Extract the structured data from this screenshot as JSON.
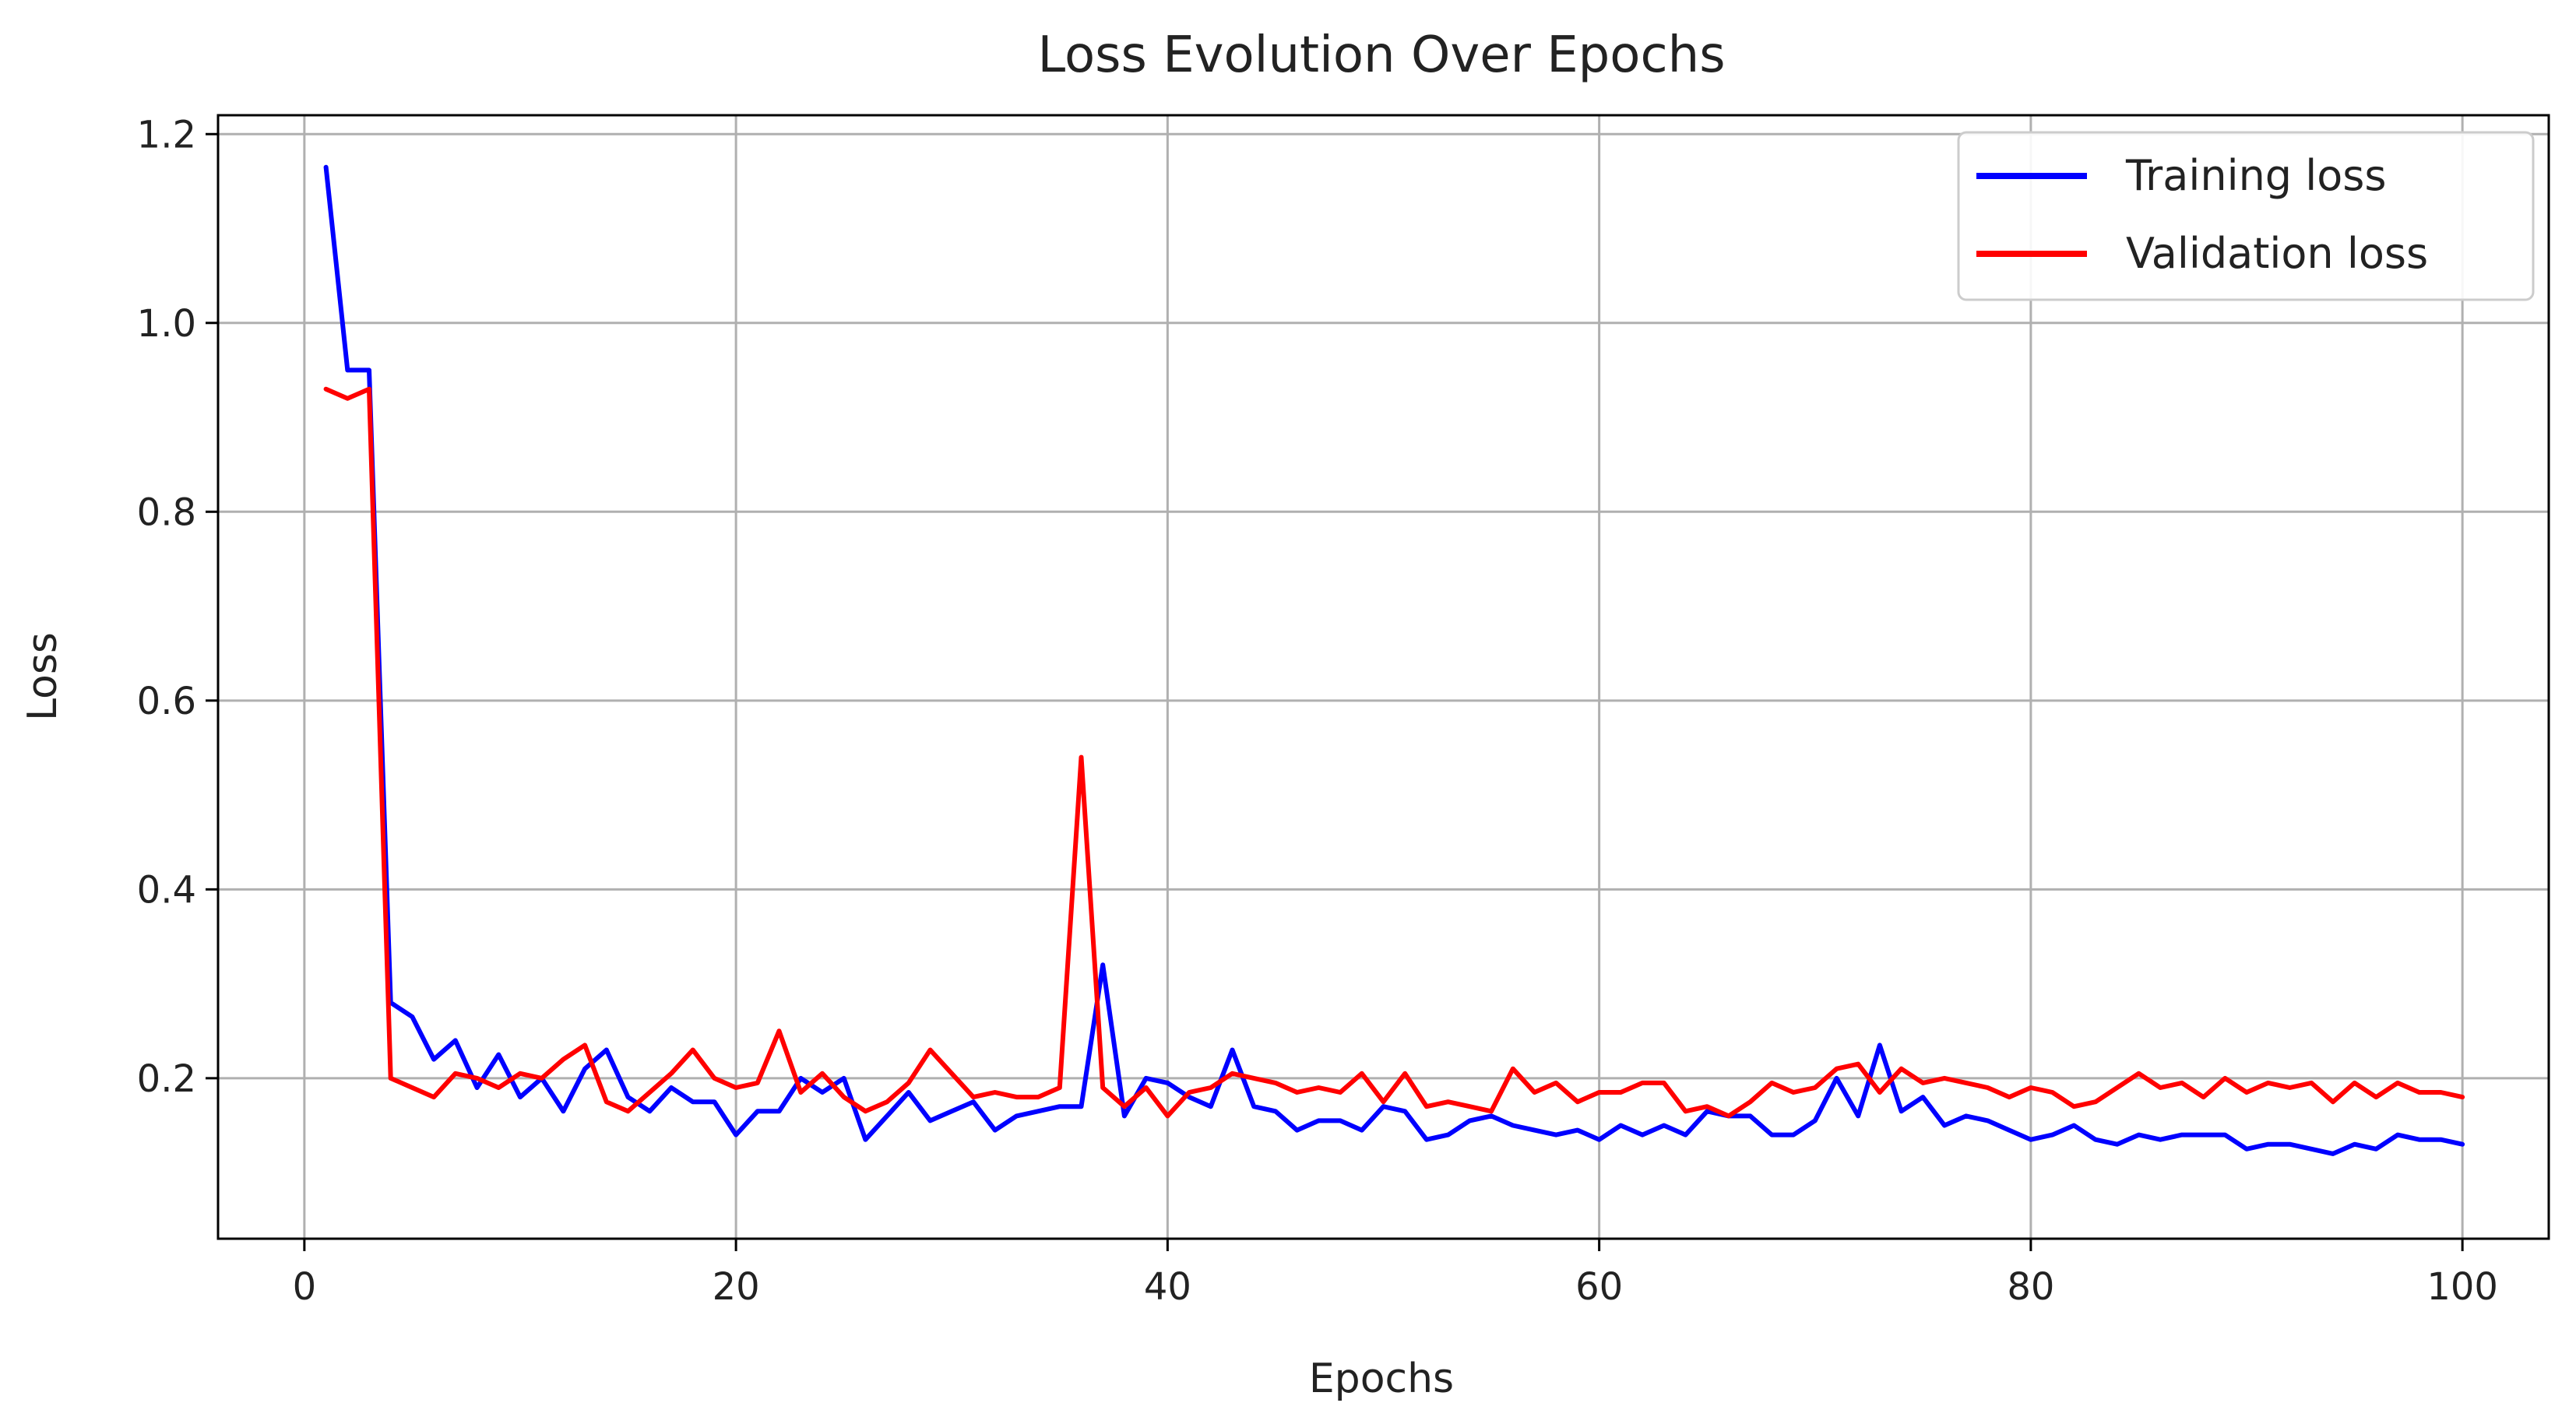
{
  "chart_data": {
    "type": "line",
    "title": "Loss Evolution Over Epochs",
    "xlabel": "Epochs",
    "ylabel": "Loss",
    "xlim": [
      -4,
      104
    ],
    "ylim": [
      0.03,
      1.22
    ],
    "grid": true,
    "legend_position": "upper right",
    "xticks": [
      0,
      20,
      40,
      60,
      80,
      100
    ],
    "xtick_labels": [
      "0",
      "20",
      "40",
      "60",
      "80",
      "100"
    ],
    "yticks": [
      0.2,
      0.4,
      0.6,
      0.8,
      1.0,
      1.2
    ],
    "ytick_labels": [
      "0.2",
      "0.4",
      "0.6",
      "0.8",
      "1.0",
      "1.2"
    ],
    "series": [
      {
        "name": "Training loss",
        "color": "#0000ff",
        "x": [
          1,
          2,
          3,
          4,
          5,
          6,
          7,
          8,
          9,
          10,
          11,
          12,
          13,
          14,
          15,
          16,
          17,
          18,
          19,
          20,
          21,
          22,
          23,
          24,
          25,
          26,
          27,
          28,
          29,
          30,
          31,
          32,
          33,
          34,
          35,
          36,
          37,
          38,
          39,
          40,
          41,
          42,
          43,
          44,
          45,
          46,
          47,
          48,
          49,
          50,
          51,
          52,
          53,
          54,
          55,
          56,
          57,
          58,
          59,
          60,
          61,
          62,
          63,
          64,
          65,
          66,
          67,
          68,
          69,
          70,
          71,
          72,
          73,
          74,
          75,
          76,
          77,
          78,
          79,
          80,
          81,
          82,
          83,
          84,
          85,
          86,
          87,
          88,
          89,
          90,
          91,
          92,
          93,
          94,
          95,
          96,
          97,
          98,
          99,
          100
        ],
        "values": [
          1.165,
          0.95,
          0.95,
          0.28,
          0.265,
          0.22,
          0.24,
          0.19,
          0.225,
          0.18,
          0.2,
          0.165,
          0.21,
          0.23,
          0.18,
          0.165,
          0.19,
          0.175,
          0.175,
          0.14,
          0.165,
          0.165,
          0.2,
          0.185,
          0.2,
          0.135,
          0.16,
          0.185,
          0.155,
          0.165,
          0.175,
          0.145,
          0.16,
          0.165,
          0.17,
          0.17,
          0.32,
          0.16,
          0.2,
          0.195,
          0.18,
          0.17,
          0.23,
          0.17,
          0.165,
          0.145,
          0.155,
          0.155,
          0.145,
          0.17,
          0.165,
          0.135,
          0.14,
          0.155,
          0.16,
          0.15,
          0.145,
          0.14,
          0.145,
          0.135,
          0.15,
          0.14,
          0.15,
          0.14,
          0.165,
          0.16,
          0.16,
          0.14,
          0.14,
          0.155,
          0.2,
          0.16,
          0.235,
          0.165,
          0.18,
          0.15,
          0.16,
          0.155,
          0.145,
          0.135,
          0.14,
          0.15,
          0.135,
          0.13,
          0.14,
          0.135,
          0.14,
          0.14,
          0.14,
          0.125,
          0.13,
          0.13,
          0.125,
          0.12,
          0.13,
          0.125,
          0.14,
          0.135,
          0.135,
          0.13
        ]
      },
      {
        "name": "Validation loss",
        "color": "#ff0000",
        "x": [
          1,
          2,
          3,
          4,
          5,
          6,
          7,
          8,
          9,
          10,
          11,
          12,
          13,
          14,
          15,
          16,
          17,
          18,
          19,
          20,
          21,
          22,
          23,
          24,
          25,
          26,
          27,
          28,
          29,
          30,
          31,
          32,
          33,
          34,
          35,
          36,
          37,
          38,
          39,
          40,
          41,
          42,
          43,
          44,
          45,
          46,
          47,
          48,
          49,
          50,
          51,
          52,
          53,
          54,
          55,
          56,
          57,
          58,
          59,
          60,
          61,
          62,
          63,
          64,
          65,
          66,
          67,
          68,
          69,
          70,
          71,
          72,
          73,
          74,
          75,
          76,
          77,
          78,
          79,
          80,
          81,
          82,
          83,
          84,
          85,
          86,
          87,
          88,
          89,
          90,
          91,
          92,
          93,
          94,
          95,
          96,
          97,
          98,
          99,
          100
        ],
        "values": [
          0.93,
          0.92,
          0.93,
          0.2,
          0.19,
          0.18,
          0.205,
          0.2,
          0.19,
          0.205,
          0.2,
          0.22,
          0.235,
          0.175,
          0.165,
          0.185,
          0.205,
          0.23,
          0.2,
          0.19,
          0.195,
          0.25,
          0.185,
          0.205,
          0.18,
          0.165,
          0.175,
          0.195,
          0.23,
          0.205,
          0.18,
          0.185,
          0.18,
          0.18,
          0.19,
          0.54,
          0.19,
          0.17,
          0.19,
          0.16,
          0.185,
          0.19,
          0.205,
          0.2,
          0.195,
          0.185,
          0.19,
          0.185,
          0.205,
          0.175,
          0.205,
          0.17,
          0.175,
          0.17,
          0.165,
          0.21,
          0.185,
          0.195,
          0.175,
          0.185,
          0.185,
          0.195,
          0.195,
          0.165,
          0.17,
          0.16,
          0.175,
          0.195,
          0.185,
          0.19,
          0.21,
          0.215,
          0.185,
          0.21,
          0.195,
          0.2,
          0.195,
          0.19,
          0.18,
          0.19,
          0.185,
          0.17,
          0.175,
          0.19,
          0.205,
          0.19,
          0.195,
          0.18,
          0.2,
          0.185,
          0.195,
          0.19,
          0.195,
          0.175,
          0.195,
          0.18,
          0.195,
          0.185,
          0.185,
          0.18
        ]
      }
    ]
  }
}
